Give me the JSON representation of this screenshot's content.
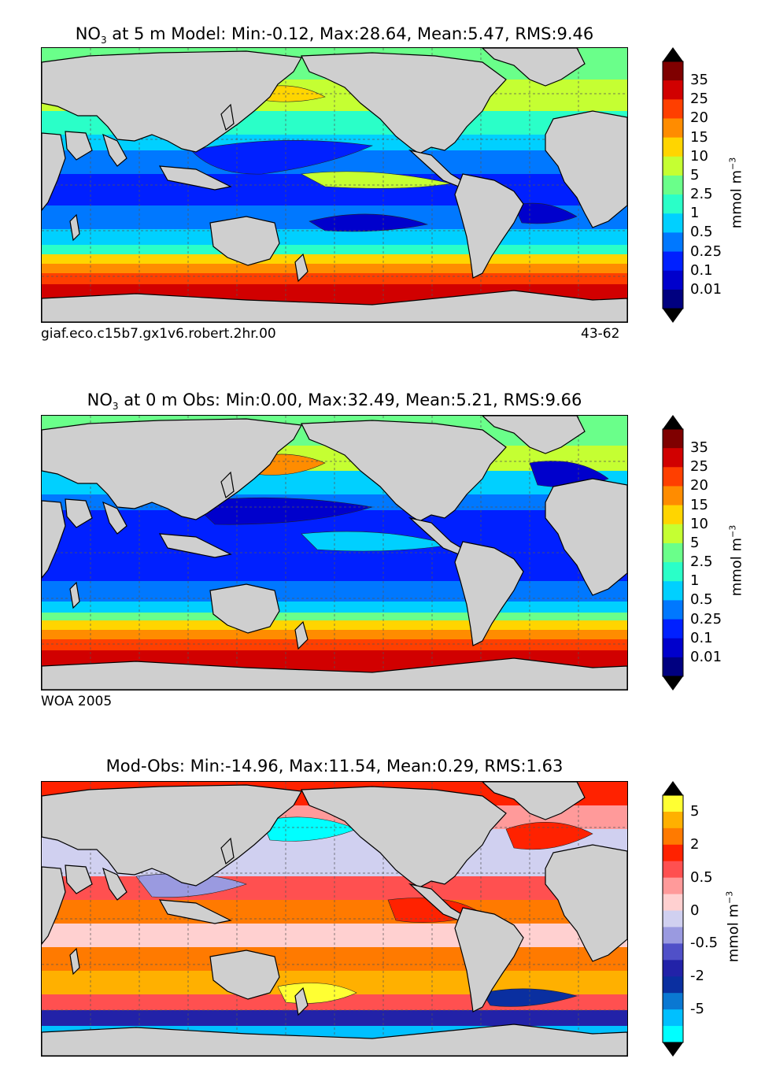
{
  "panels": [
    {
      "id": "model",
      "title_prefix": "NO",
      "title_sub": "3",
      "title_suffix": " at 5 m Model: Min:-0.12, Max:28.64, Mean:5.47, RMS:9.46",
      "caption_left": "giaf.eco.c15b7.gx1v6.robert.2hr.00",
      "caption_right": "43-62",
      "colorbar": {
        "unit_main": "mmol m",
        "unit_sup": "−3",
        "tick_labels": [
          "35",
          "25",
          "20",
          "15",
          "10",
          "5",
          "2.5",
          "1",
          "0.5",
          "0.25",
          "0.1",
          "0.01"
        ],
        "colors_top_to_bottom": [
          "#7f0000",
          "#d10000",
          "#ff3f00",
          "#ff8c00",
          "#ffd500",
          "#c5ff32",
          "#6aff8a",
          "#2affc8",
          "#00d0ff",
          "#0078ff",
          "#0020ff",
          "#0000cc",
          "#000080"
        ],
        "extend_top": "#000000",
        "extend_bottom": "#000000"
      }
    },
    {
      "id": "obs",
      "title_prefix": "NO",
      "title_sub": "3",
      "title_suffix": " at 0 m Obs: Min:0.00, Max:32.49, Mean:5.21, RMS:9.66",
      "caption_left": "WOA 2005",
      "caption_right": "",
      "colorbar": {
        "unit_main": "mmol m",
        "unit_sup": "−3",
        "tick_labels": [
          "35",
          "25",
          "20",
          "15",
          "10",
          "5",
          "2.5",
          "1",
          "0.5",
          "0.25",
          "0.1",
          "0.01"
        ],
        "colors_top_to_bottom": [
          "#7f0000",
          "#d10000",
          "#ff3f00",
          "#ff8c00",
          "#ffd500",
          "#c5ff32",
          "#6aff8a",
          "#2affc8",
          "#00d0ff",
          "#0078ff",
          "#0020ff",
          "#0000cc",
          "#000080"
        ],
        "extend_top": "#000000",
        "extend_bottom": "#000000"
      }
    },
    {
      "id": "diff",
      "title_prefix": "Mod-Obs: Min:-14.96, Max:11.54, Mean:0.29, RMS:1.63",
      "title_sub": "",
      "title_suffix": "",
      "caption_left": "",
      "caption_right": "",
      "colorbar": {
        "unit_main": "mmol m",
        "unit_sup": "−3",
        "tick_labels": [
          "5",
          "2",
          "0.5",
          "0",
          "-0.5",
          "-2",
          "-5"
        ],
        "colors_top_to_bottom": [
          "#ffff33",
          "#ffb000",
          "#ff7a00",
          "#ff2200",
          "#ff5050",
          "#ff9a9a",
          "#ffd0d0",
          "#d0d0f0",
          "#9a9ae0",
          "#5050c8",
          "#2222a8",
          "#0a2fa0",
          "#0a78d2",
          "#00c0ff",
          "#00ffff"
        ],
        "extend_top": "#000000",
        "extend_bottom": "#000000"
      }
    }
  ],
  "map_style": {
    "land_color": "#cfcfcf",
    "coast_color": "#000000",
    "grid_color": "#555555"
  }
}
